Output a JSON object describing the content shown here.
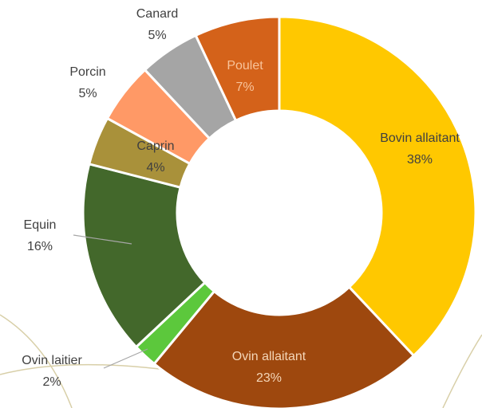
{
  "chart_data": {
    "type": "donut",
    "categories": [
      "Bovin allaitant",
      "Ovin allaitant",
      "Ovin laitier",
      "Equin",
      "Caprin",
      "Porcin",
      "Canard",
      "Poulet"
    ],
    "values": [
      38,
      23,
      2,
      16,
      4,
      5,
      5,
      7
    ],
    "value_labels": [
      "38%",
      "23%",
      "2%",
      "16%",
      "4%",
      "5%",
      "5%",
      "7%"
    ],
    "colors": [
      "#ffc800",
      "#9e480e",
      "#5cc83c",
      "#43682b",
      "#a9913a",
      "#ff9966",
      "#a5a5a5",
      "#d4621a"
    ]
  }
}
